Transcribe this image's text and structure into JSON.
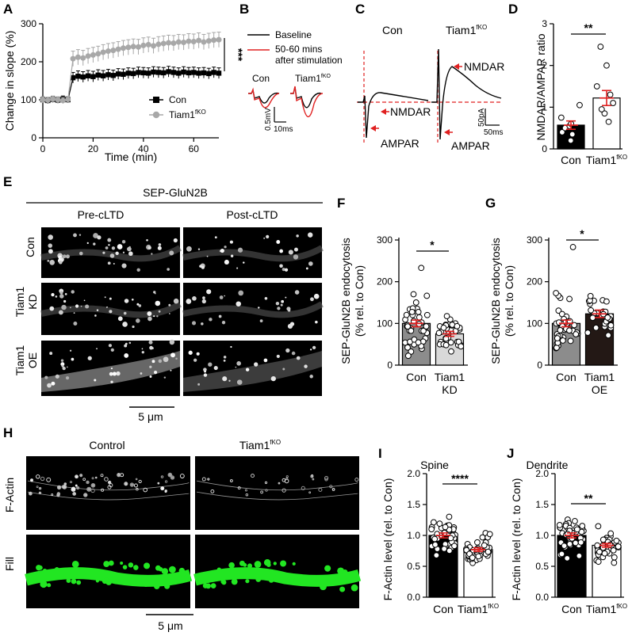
{
  "panel_letters": {
    "A": "A",
    "B": "B",
    "C": "C",
    "D": "D",
    "E": "E",
    "F": "F",
    "G": "G",
    "H": "H",
    "I": "I",
    "J": "J"
  },
  "colors": {
    "con": "#000000",
    "tiam": "#a8a8a8",
    "red": "#e02020",
    "green": "#22e622",
    "grey_bar": "#8c8c8c",
    "dark_bar": "#231815"
  },
  "panelA": {
    "ylabel": "Change in slope (%)",
    "xlabel": "Time (min)",
    "legend": {
      "con": "Con",
      "tiam_base": "Tiam1",
      "tiam_sup": "fKO"
    },
    "sig": "***"
  },
  "panelB": {
    "legend": {
      "baseline": "Baseline",
      "post1": "50-60 mins",
      "post2": "after stimulation"
    },
    "con": "Con",
    "tiam_base": "Tiam1",
    "tiam_sup": "fKO",
    "scale_v": "0.5mV",
    "scale_t": "10ms"
  },
  "panelC": {
    "con": "Con",
    "tiam_base": "Tiam1",
    "tiam_sup": "fKO",
    "nmdar": "NMDAR",
    "ampar": "AMPAR",
    "scale_a": "50pA",
    "scale_t": "50ms"
  },
  "panelD": {
    "ylabel": "NMDAR/AMPAR ratio",
    "sig": "**",
    "cat_con": "Con",
    "cat_tiam": "Tiam1",
    "cat_sup": "fKO"
  },
  "panelE": {
    "title": "SEP-GluN2B",
    "col1": "Pre-cLTD",
    "col2": "Post-cLTD",
    "row1": "Con",
    "row2a": "Tiam1",
    "row2b": "KD",
    "row3a": "Tiam1",
    "row3b": "OE",
    "scale": "5 μm"
  },
  "panelF": {
    "ylabel1": "SEP-GluN2B endocytosis",
    "ylabel2": "(% rel. to Con)",
    "sig": "*",
    "cat1": "Con",
    "cat2a": "Tiam1",
    "cat2b": "KD"
  },
  "panelG": {
    "ylabel1": "SEP-GluN2B endocytosis",
    "ylabel2": "(% rel. to Con)",
    "sig": "*",
    "cat1": "Con",
    "cat2a": "Tiam1",
    "cat2b": "OE"
  },
  "panelH": {
    "col1": "Control",
    "col2_base": "Tiam1",
    "col2_sup": "fKO",
    "row1": "F-Actin",
    "row2": "Fill",
    "scale": "5 μm"
  },
  "panelI": {
    "title": "Spine",
    "ylabel": "F-Actin level (rel. to Con)",
    "sig": "****",
    "cat1": "Con",
    "cat2_base": "Tiam1",
    "cat2_sup": "fKO"
  },
  "panelJ": {
    "title": "Dendrite",
    "ylabel": "F-Actin level (rel. to Con)",
    "sig": "**",
    "cat1": "Con",
    "cat2_base": "Tiam1",
    "cat2_sup": "fKO"
  },
  "chart_data": [
    {
      "id": "A",
      "type": "scatter",
      "xlabel": "Time (min)",
      "ylabel": "Change in slope (%)",
      "xlim": [
        0,
        70
      ],
      "ylim": [
        0,
        300
      ],
      "xticks": [
        "0",
        "20",
        "40",
        "60"
      ],
      "yticks": [
        "0",
        "100",
        "200",
        "300"
      ],
      "series": [
        {
          "name": "Con",
          "x": [
            0,
            2,
            4,
            6,
            8,
            10,
            12,
            14,
            16,
            18,
            20,
            22,
            24,
            26,
            28,
            30,
            32,
            34,
            36,
            38,
            40,
            42,
            44,
            46,
            48,
            50,
            52,
            54,
            56,
            58,
            60,
            62,
            64,
            66,
            68,
            70
          ],
          "values": [
            100,
            98,
            101,
            99,
            102,
            100,
            158,
            162,
            160,
            163,
            161,
            165,
            163,
            166,
            164,
            168,
            167,
            170,
            169,
            172,
            171,
            170,
            173,
            172,
            171,
            174,
            172,
            170,
            173,
            171,
            172,
            170,
            171,
            169,
            172,
            170
          ]
        },
        {
          "name": "Tiam1fKO",
          "x": [
            0,
            2,
            4,
            6,
            8,
            10,
            12,
            14,
            16,
            18,
            20,
            22,
            24,
            26,
            28,
            30,
            32,
            34,
            36,
            38,
            40,
            42,
            44,
            46,
            48,
            50,
            52,
            54,
            56,
            58,
            60,
            62,
            64,
            66,
            68,
            70
          ],
          "values": [
            100,
            99,
            102,
            100,
            98,
            101,
            208,
            212,
            210,
            215,
            218,
            221,
            225,
            228,
            230,
            233,
            236,
            238,
            240,
            239,
            243,
            245,
            242,
            246,
            248,
            250,
            249,
            252,
            251,
            254,
            253,
            256,
            252,
            255,
            257,
            258
          ]
        }
      ]
    },
    {
      "id": "D",
      "type": "bar",
      "ylabel": "NMDAR/AMPAR ratio",
      "ylim": [
        0,
        3
      ],
      "yticks": [
        "0",
        "1",
        "2",
        "3"
      ],
      "categories": [
        "Con",
        "Tiam1fKO"
      ],
      "values": [
        0.57,
        1.22
      ],
      "errors": [
        0.1,
        0.18
      ],
      "points": [
        [
          0.2,
          0.35,
          0.4,
          0.5,
          0.55,
          0.6,
          0.75,
          1.05
        ],
        [
          0.65,
          0.85,
          0.95,
          1.1,
          1.3,
          1.5,
          2.0,
          2.45
        ]
      ]
    },
    {
      "id": "F",
      "type": "bar",
      "ylabel": "SEP-GluN2B endocytosis (% rel. to Con)",
      "ylim": [
        0,
        300
      ],
      "yticks": [
        "0",
        "100",
        "200",
        "300"
      ],
      "categories": [
        "Con",
        "Tiam1 KD"
      ],
      "values": [
        100,
        75
      ],
      "errors": [
        8,
        6
      ]
    },
    {
      "id": "G",
      "type": "bar",
      "ylabel": "SEP-GluN2B endocytosis (% rel. to Con)",
      "ylim": [
        0,
        300
      ],
      "yticks": [
        "0",
        "100",
        "200",
        "300"
      ],
      "categories": [
        "Con",
        "Tiam1 OE"
      ],
      "values": [
        100,
        123
      ],
      "errors": [
        8,
        9
      ]
    },
    {
      "id": "I",
      "type": "bar",
      "title": "Spine",
      "ylabel": "F-Actin level (rel. to Con)",
      "ylim": [
        0,
        2
      ],
      "yticks": [
        "0.0",
        "0.5",
        "1.0",
        "1.5",
        "2.0"
      ],
      "categories": [
        "Con",
        "Tiam1fKO"
      ],
      "values": [
        1.0,
        0.77
      ],
      "errors": [
        0.04,
        0.03
      ]
    },
    {
      "id": "J",
      "type": "bar",
      "title": "Dendrite",
      "ylabel": "F-Actin level (rel. to Con)",
      "ylim": [
        0,
        2
      ],
      "yticks": [
        "0.0",
        "0.5",
        "1.0",
        "1.5",
        "2.0"
      ],
      "categories": [
        "Con",
        "Tiam1fKO"
      ],
      "values": [
        1.0,
        0.84
      ],
      "errors": [
        0.04,
        0.03
      ]
    }
  ]
}
